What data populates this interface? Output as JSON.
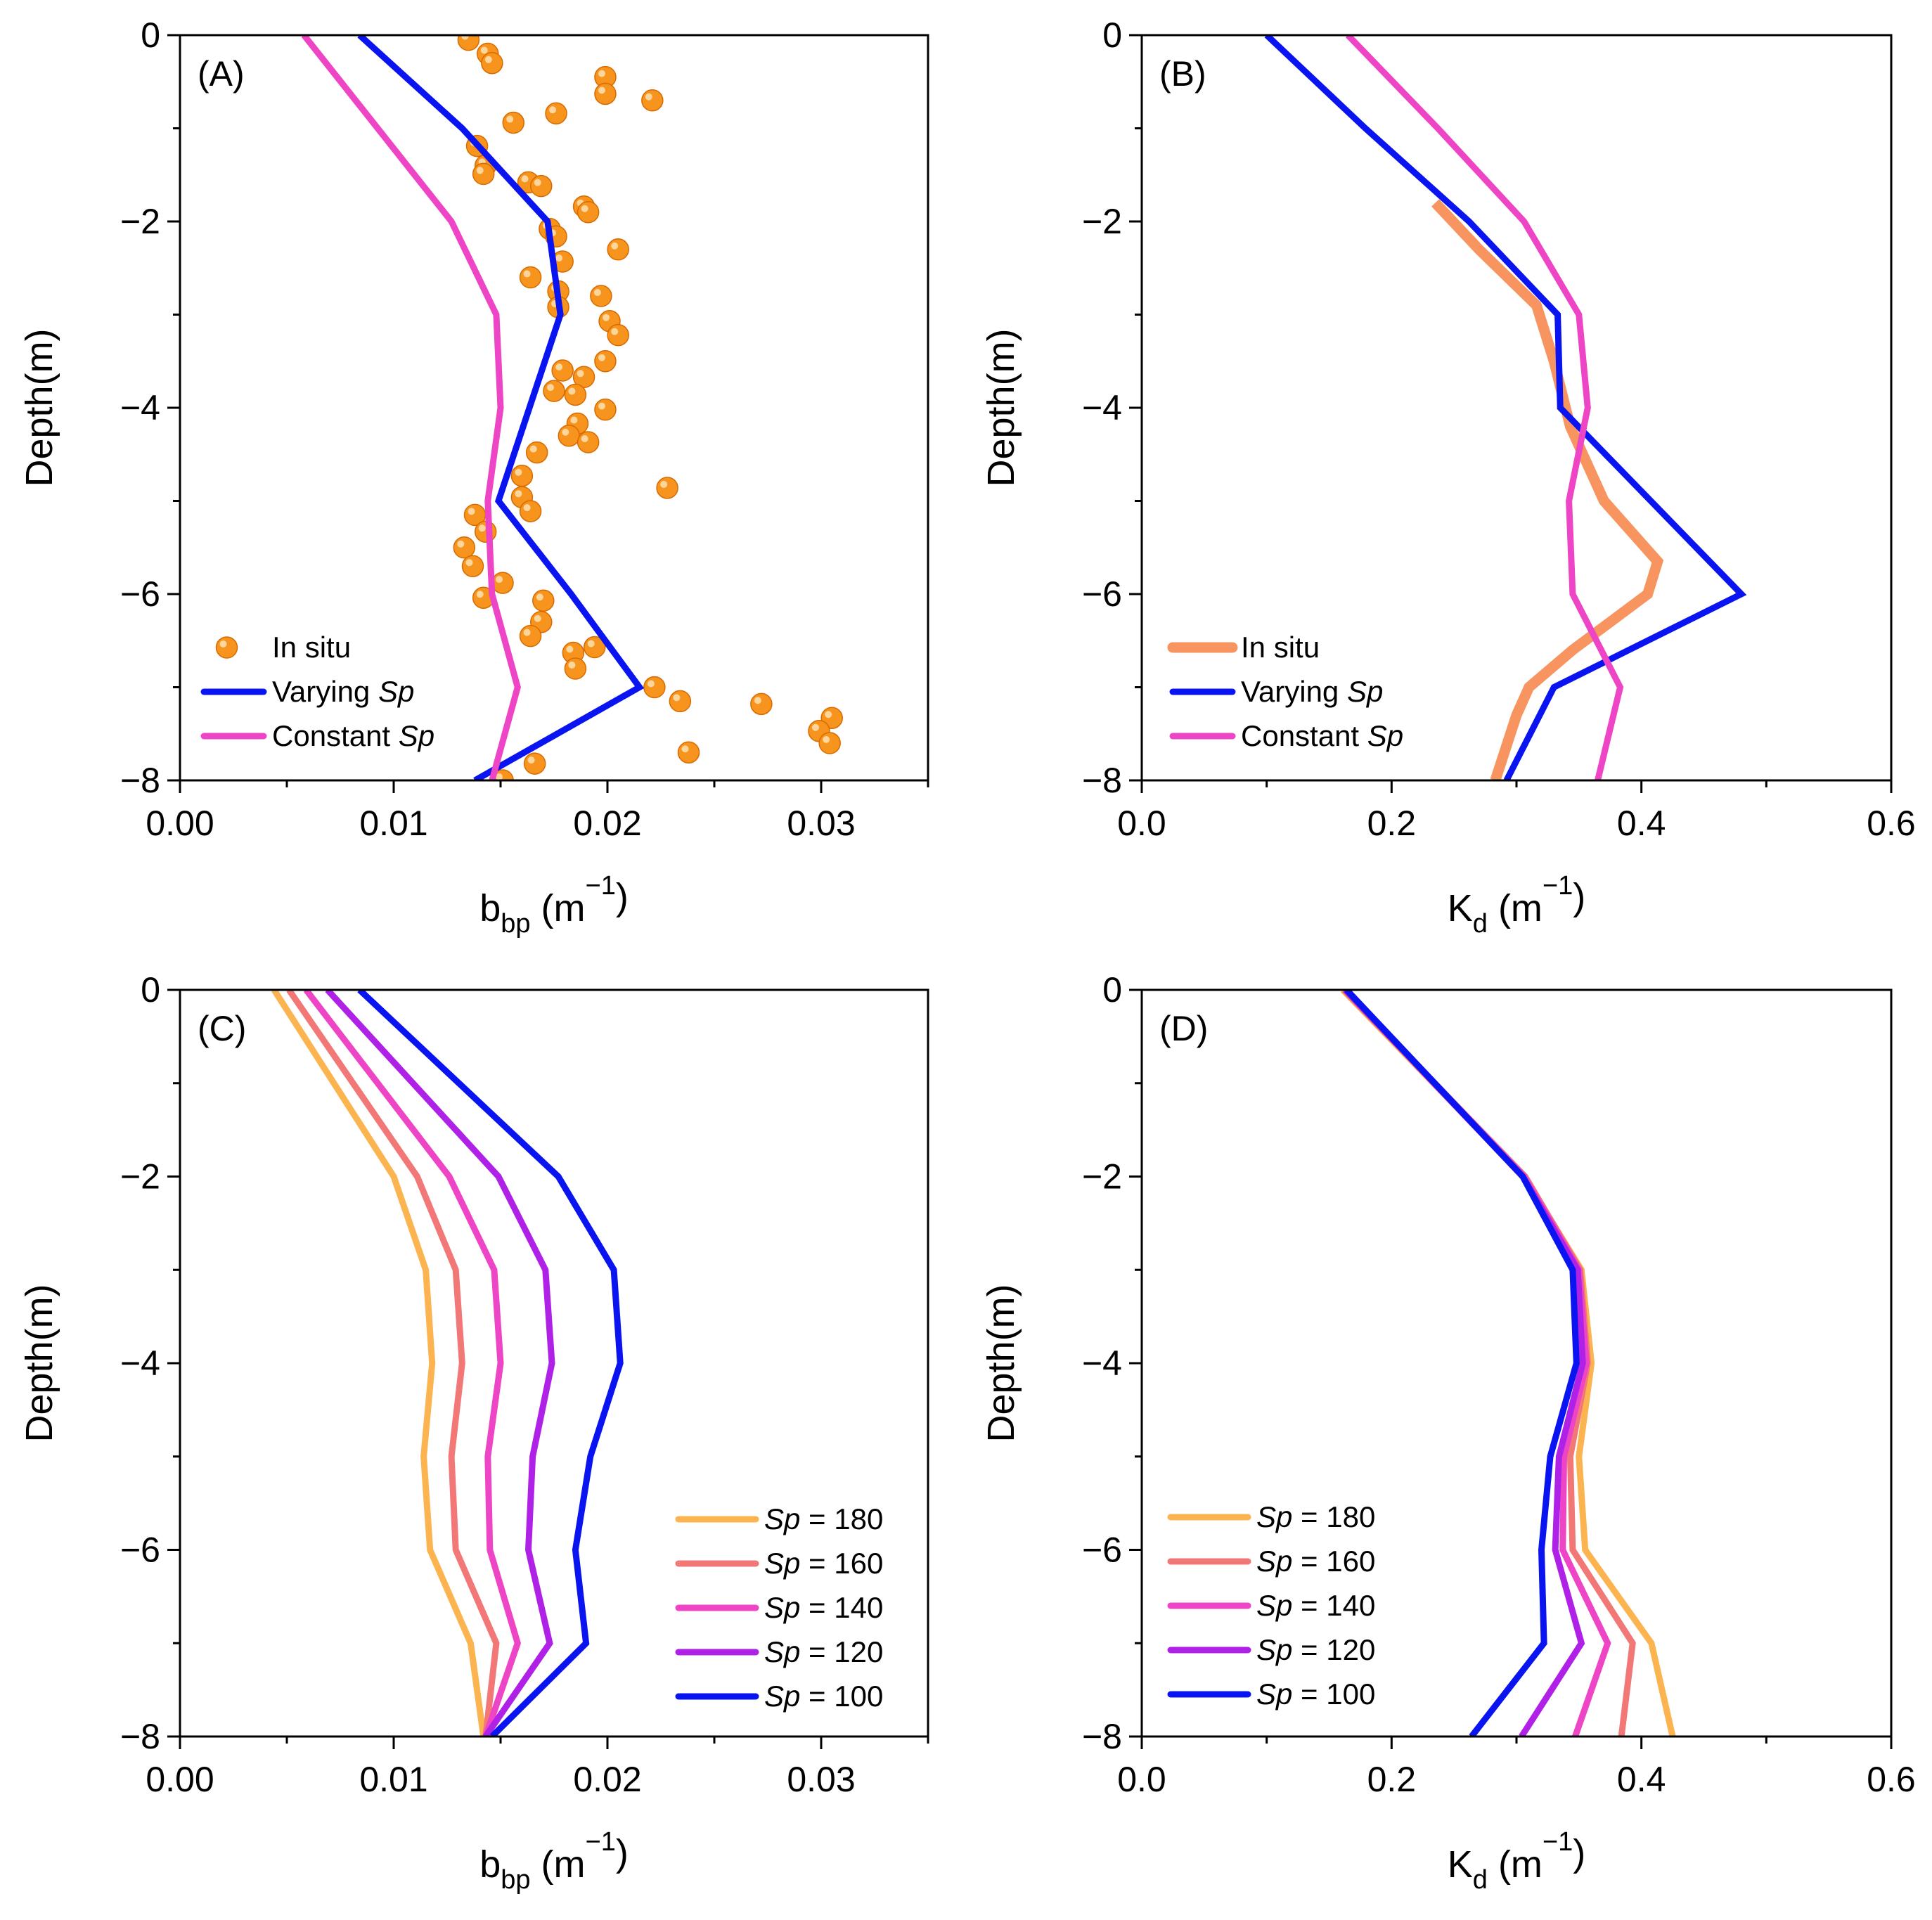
{
  "colors": {
    "in_situ_points": "#f7941d",
    "in_situ_line": "#f7945f",
    "varying": "#0a14f0",
    "constant": "#ee44c6",
    "sp180": "#fbb450",
    "sp160": "#f27878",
    "sp140": "#ee44c6",
    "sp120": "#b021e8",
    "sp100": "#0a14f0"
  },
  "chart_data": [
    {
      "type": "scatter",
      "panel_label": "(A)",
      "xlabel_main": "b",
      "xlabel_sub": "bp",
      "xlabel_unit": "(m",
      "xlabel_exp": "−1",
      "xlabel_close": ")",
      "ylabel": "Depth(m)",
      "xlim": [
        0,
        0.035
      ],
      "ylim": [
        -8,
        0
      ],
      "xticks": [
        "0.00",
        "0.01",
        "0.02",
        "0.03"
      ],
      "xtick_values": [
        0,
        0.01,
        0.02,
        0.03
      ],
      "yticks": [
        "0",
        "−2",
        "−4",
        "−6",
        "−8"
      ],
      "ytick_values": [
        0,
        -2,
        -4,
        -6,
        -8
      ],
      "grid": false,
      "legend_position": "bottom-left",
      "series": [
        {
          "name": "In situ",
          "kind": "points",
          "color_key": "in_situ_points",
          "points": [
            [
              0.0135,
              -0.05
            ],
            [
              0.0144,
              -0.2
            ],
            [
              0.0146,
              -0.3
            ],
            [
              0.0199,
              -0.45
            ],
            [
              0.0199,
              -0.63
            ],
            [
              0.0221,
              -0.7
            ],
            [
              0.0176,
              -0.84
            ],
            [
              0.0156,
              -0.94
            ],
            [
              0.0139,
              -1.19
            ],
            [
              0.0143,
              -1.4
            ],
            [
              0.0142,
              -1.49
            ],
            [
              0.0163,
              -1.58
            ],
            [
              0.0169,
              -1.62
            ],
            [
              0.0189,
              -1.84
            ],
            [
              0.0191,
              -1.9
            ],
            [
              0.0173,
              -2.08
            ],
            [
              0.0176,
              -2.16
            ],
            [
              0.0205,
              -2.3
            ],
            [
              0.0179,
              -2.43
            ],
            [
              0.0164,
              -2.6
            ],
            [
              0.0177,
              -2.75
            ],
            [
              0.0197,
              -2.8
            ],
            [
              0.0177,
              -2.92
            ],
            [
              0.0201,
              -3.07
            ],
            [
              0.0205,
              -3.22
            ],
            [
              0.0199,
              -3.5
            ],
            [
              0.0179,
              -3.6
            ],
            [
              0.0189,
              -3.67
            ],
            [
              0.0175,
              -3.82
            ],
            [
              0.0185,
              -3.86
            ],
            [
              0.0199,
              -4.02
            ],
            [
              0.0186,
              -4.17
            ],
            [
              0.0182,
              -4.3
            ],
            [
              0.0191,
              -4.37
            ],
            [
              0.0167,
              -4.48
            ],
            [
              0.016,
              -4.73
            ],
            [
              0.0228,
              -4.86
            ],
            [
              0.016,
              -4.96
            ],
            [
              0.0164,
              -5.11
            ],
            [
              0.0138,
              -5.15
            ],
            [
              0.0143,
              -5.33
            ],
            [
              0.0133,
              -5.5
            ],
            [
              0.0137,
              -5.7
            ],
            [
              0.0151,
              -5.88
            ],
            [
              0.0142,
              -6.04
            ],
            [
              0.017,
              -6.07
            ],
            [
              0.0169,
              -6.3
            ],
            [
              0.0164,
              -6.45
            ],
            [
              0.0194,
              -6.57
            ],
            [
              0.0184,
              -6.63
            ],
            [
              0.0185,
              -6.8
            ],
            [
              0.0222,
              -7.0
            ],
            [
              0.0234,
              -7.15
            ],
            [
              0.0272,
              -7.18
            ],
            [
              0.0305,
              -7.33
            ],
            [
              0.0299,
              -7.47
            ],
            [
              0.0304,
              -7.6
            ],
            [
              0.0238,
              -7.7
            ],
            [
              0.0166,
              -7.82
            ],
            [
              0.0151,
              -8.0
            ]
          ]
        },
        {
          "name": "Varying ",
          "name_italic": "Sp",
          "kind": "line",
          "color_key": "varying",
          "points": [
            [
              0.0084,
              0
            ],
            [
              0.0132,
              -1.0
            ],
            [
              0.0172,
              -2.0
            ],
            [
              0.0178,
              -3.0
            ],
            [
              0.0149,
              -5.0
            ],
            [
              0.0183,
              -6.0
            ],
            [
              0.0215,
              -7.0
            ],
            [
              0.0138,
              -8.0
            ]
          ]
        },
        {
          "name": "Constant ",
          "name_italic": "Sp",
          "kind": "line",
          "color_key": "constant",
          "points": [
            [
              0.0058,
              0
            ],
            [
              0.0127,
              -2.0
            ],
            [
              0.0148,
              -3.0
            ],
            [
              0.015,
              -4.0
            ],
            [
              0.0144,
              -5.0
            ],
            [
              0.0146,
              -6.0
            ],
            [
              0.0158,
              -7.0
            ],
            [
              0.0146,
              -8.0
            ]
          ]
        }
      ]
    },
    {
      "type": "line",
      "panel_label": "(B)",
      "xlabel_main": "K",
      "xlabel_sub": "d",
      "xlabel_unit": "(m",
      "xlabel_exp": "−1",
      "xlabel_close": ")",
      "ylabel": "Depth(m)",
      "xlim": [
        0,
        0.6
      ],
      "ylim": [
        -8,
        0
      ],
      "xticks": [
        "0.0",
        "0.2",
        "0.4",
        "0.6"
      ],
      "xtick_values": [
        0,
        0.2,
        0.4,
        0.6
      ],
      "yticks": [
        "0",
        "−2",
        "−4",
        "−6",
        "−8"
      ],
      "ytick_values": [
        0,
        -2,
        -4,
        -6,
        -8
      ],
      "grid": false,
      "legend_position": "bottom-left",
      "series": [
        {
          "name": "In situ",
          "kind": "line",
          "color_key": "in_situ_line",
          "width": 15,
          "points": [
            [
              0.235,
              -1.8
            ],
            [
              0.27,
              -2.3
            ],
            [
              0.316,
              -2.9
            ],
            [
              0.33,
              -3.5
            ],
            [
              0.343,
              -4.2
            ],
            [
              0.37,
              -5.0
            ],
            [
              0.413,
              -5.65
            ],
            [
              0.405,
              -6.0
            ],
            [
              0.345,
              -6.6
            ],
            [
              0.31,
              -7.0
            ],
            [
              0.3,
              -7.3
            ],
            [
              0.283,
              -8.0
            ]
          ]
        },
        {
          "name": "Varying ",
          "name_italic": "Sp",
          "kind": "line",
          "color_key": "varying",
          "points": [
            [
              0.1,
              0
            ],
            [
              0.179,
              -1.0
            ],
            [
              0.262,
              -2.0
            ],
            [
              0.333,
              -3.0
            ],
            [
              0.335,
              -4.0
            ],
            [
              0.48,
              -6.0
            ],
            [
              0.33,
              -7.0
            ],
            [
              0.292,
              -8.0
            ]
          ]
        },
        {
          "name": "Constant ",
          "name_italic": "Sp",
          "kind": "line",
          "color_key": "constant",
          "points": [
            [
              0.165,
              0
            ],
            [
              0.237,
              -1.0
            ],
            [
              0.306,
              -2.0
            ],
            [
              0.35,
              -3.0
            ],
            [
              0.357,
              -4.0
            ],
            [
              0.342,
              -5.0
            ],
            [
              0.345,
              -6.0
            ],
            [
              0.383,
              -7.0
            ],
            [
              0.365,
              -8.0
            ]
          ]
        }
      ]
    },
    {
      "type": "line",
      "panel_label": "(C)",
      "xlabel_main": "b",
      "xlabel_sub": "bp",
      "xlabel_unit": "(m",
      "xlabel_exp": "−1",
      "xlabel_close": ")",
      "ylabel": "Depth(m)",
      "xlim": [
        0,
        0.035
      ],
      "ylim": [
        -8,
        0
      ],
      "xticks": [
        "0.00",
        "0.01",
        "0.02",
        "0.03"
      ],
      "xtick_values": [
        0,
        0.01,
        0.02,
        0.03
      ],
      "yticks": [
        "0",
        "−2",
        "−4",
        "−6",
        "−8"
      ],
      "ytick_values": [
        0,
        -2,
        -4,
        -6,
        -8
      ],
      "grid": false,
      "legend_position": "bottom-right",
      "series": [
        {
          "name": " = 180",
          "name_italic": "Sp",
          "kind": "line",
          "color_key": "sp180",
          "points": [
            [
              0.0044,
              0
            ],
            [
              0.01,
              -2.0
            ],
            [
              0.0115,
              -3.0
            ],
            [
              0.0118,
              -4.0
            ],
            [
              0.0114,
              -5.0
            ],
            [
              0.0117,
              -6.0
            ],
            [
              0.0136,
              -7.0
            ],
            [
              0.0142,
              -8.0
            ]
          ]
        },
        {
          "name": " = 160",
          "name_italic": "Sp",
          "kind": "line",
          "color_key": "sp160",
          "points": [
            [
              0.0051,
              0
            ],
            [
              0.0111,
              -2.0
            ],
            [
              0.0129,
              -3.0
            ],
            [
              0.0132,
              -4.0
            ],
            [
              0.0127,
              -5.0
            ],
            [
              0.0129,
              -6.0
            ],
            [
              0.0148,
              -7.0
            ],
            [
              0.0143,
              -8.0
            ]
          ]
        },
        {
          "name": " = 140",
          "name_italic": "Sp",
          "kind": "line",
          "color_key": "sp140",
          "points": [
            [
              0.0059,
              0
            ],
            [
              0.0126,
              -2.0
            ],
            [
              0.0147,
              -3.0
            ],
            [
              0.015,
              -4.0
            ],
            [
              0.0144,
              -5.0
            ],
            [
              0.0145,
              -6.0
            ],
            [
              0.0158,
              -7.0
            ],
            [
              0.0143,
              -8.0
            ]
          ]
        },
        {
          "name": " = 120",
          "name_italic": "Sp",
          "kind": "line",
          "color_key": "sp120",
          "points": [
            [
              0.0069,
              0
            ],
            [
              0.0149,
              -2.0
            ],
            [
              0.0171,
              -3.0
            ],
            [
              0.0174,
              -4.0
            ],
            [
              0.0165,
              -5.0
            ],
            [
              0.0163,
              -6.0
            ],
            [
              0.0173,
              -7.0
            ],
            [
              0.0143,
              -8.0
            ]
          ]
        },
        {
          "name": " = 100",
          "name_italic": "Sp",
          "kind": "line",
          "color_key": "sp100",
          "points": [
            [
              0.0084,
              0
            ],
            [
              0.0177,
              -2.0
            ],
            [
              0.0203,
              -3.0
            ],
            [
              0.0206,
              -4.0
            ],
            [
              0.0192,
              -5.0
            ],
            [
              0.0185,
              -6.0
            ],
            [
              0.019,
              -7.0
            ],
            [
              0.0146,
              -8.0
            ]
          ]
        }
      ]
    },
    {
      "type": "line",
      "panel_label": "(D)",
      "xlabel_main": "K",
      "xlabel_sub": "d",
      "xlabel_unit": "(m",
      "xlabel_exp": "−1",
      "xlabel_close": ")",
      "ylabel": "Depth(m)",
      "xlim": [
        0,
        0.6
      ],
      "ylim": [
        -8,
        0
      ],
      "xticks": [
        "0.0",
        "0.2",
        "0.4",
        "0.6"
      ],
      "xtick_values": [
        0,
        0.2,
        0.4,
        0.6
      ],
      "yticks": [
        "0",
        "−2",
        "−4",
        "−6",
        "−8"
      ],
      "ytick_values": [
        0,
        -2,
        -4,
        -6,
        -8
      ],
      "grid": false,
      "legend_position": "bottom-left",
      "series": [
        {
          "name": " = 180",
          "name_italic": "Sp",
          "kind": "line",
          "color_key": "sp180",
          "points": [
            [
              0.161,
              0
            ],
            [
              0.306,
              -2.0
            ],
            [
              0.352,
              -3.0
            ],
            [
              0.36,
              -4.0
            ],
            [
              0.35,
              -5.0
            ],
            [
              0.355,
              -6.0
            ],
            [
              0.408,
              -7.0
            ],
            [
              0.425,
              -8.0
            ]
          ]
        },
        {
          "name": " = 160",
          "name_italic": "Sp",
          "kind": "line",
          "color_key": "sp160",
          "points": [
            [
              0.162,
              0
            ],
            [
              0.307,
              -2.0
            ],
            [
              0.351,
              -3.0
            ],
            [
              0.357,
              -4.0
            ],
            [
              0.343,
              -5.0
            ],
            [
              0.345,
              -6.0
            ],
            [
              0.393,
              -7.0
            ],
            [
              0.384,
              -8.0
            ]
          ]
        },
        {
          "name": " = 140",
          "name_italic": "Sp",
          "kind": "line",
          "color_key": "sp140",
          "points": [
            [
              0.163,
              0
            ],
            [
              0.306,
              -2.0
            ],
            [
              0.35,
              -3.0
            ],
            [
              0.356,
              -4.0
            ],
            [
              0.338,
              -5.0
            ],
            [
              0.337,
              -6.0
            ],
            [
              0.373,
              -7.0
            ],
            [
              0.347,
              -8.0
            ]
          ]
        },
        {
          "name": " = 120",
          "name_italic": "Sp",
          "kind": "line",
          "color_key": "sp120",
          "points": [
            [
              0.163,
              0
            ],
            [
              0.305,
              -2.0
            ],
            [
              0.349,
              -3.0
            ],
            [
              0.353,
              -4.0
            ],
            [
              0.334,
              -5.0
            ],
            [
              0.331,
              -6.0
            ],
            [
              0.352,
              -7.0
            ],
            [
              0.304,
              -8.0
            ]
          ]
        },
        {
          "name": " = 100",
          "name_italic": "Sp",
          "kind": "line",
          "color_key": "sp100",
          "points": [
            [
              0.164,
              0
            ],
            [
              0.305,
              -2.0
            ],
            [
              0.345,
              -3.0
            ],
            [
              0.348,
              -4.0
            ],
            [
              0.327,
              -5.0
            ],
            [
              0.32,
              -6.0
            ],
            [
              0.322,
              -7.0
            ],
            [
              0.264,
              -8.0
            ]
          ]
        }
      ]
    }
  ]
}
